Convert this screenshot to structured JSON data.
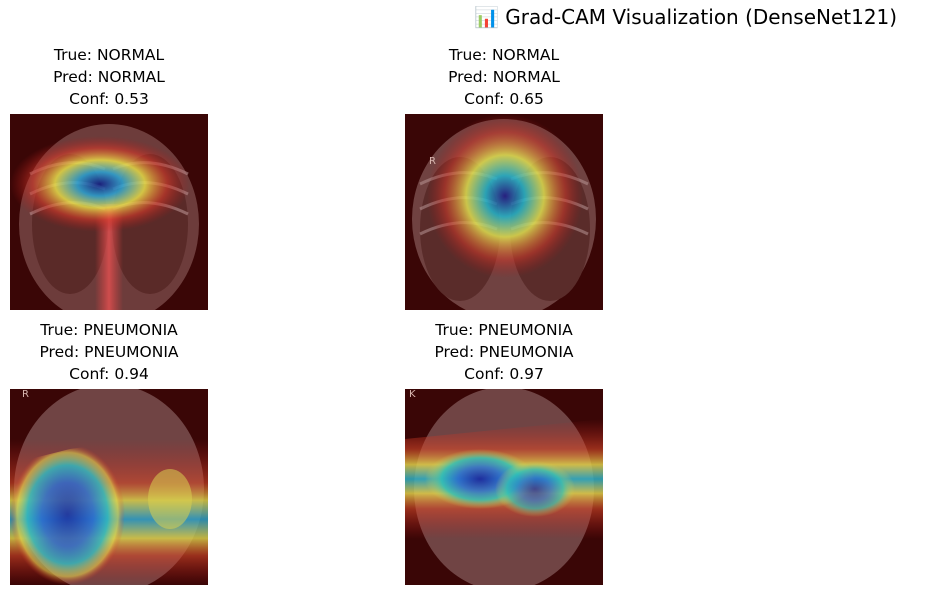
{
  "figure": {
    "title": "📊 Grad-CAM Visualization (DenseNet121)"
  },
  "panels": [
    {
      "true_label": "True: NORMAL",
      "pred_label": "Pred: NORMAL",
      "conf_label": "Conf: 0.53",
      "side_marker": ""
    },
    {
      "true_label": "True: NORMAL",
      "pred_label": "Pred: NORMAL",
      "conf_label": "Conf: 0.65",
      "side_marker": "R"
    },
    {
      "true_label": "True: PNEUMONIA",
      "pred_label": "Pred: PNEUMONIA",
      "conf_label": "Conf: 0.94",
      "side_marker": "R"
    },
    {
      "true_label": "True: PNEUMONIA",
      "pred_label": "Pred: PNEUMONIA",
      "conf_label": "Conf: 0.97",
      "side_marker": "K"
    }
  ],
  "colors": {
    "base_tint": "#3a0606",
    "bone": "#c9a9a4",
    "heat_low": "#d0302a",
    "heat_mid": "#e6d84a",
    "heat_high": "#1a2a9a"
  }
}
